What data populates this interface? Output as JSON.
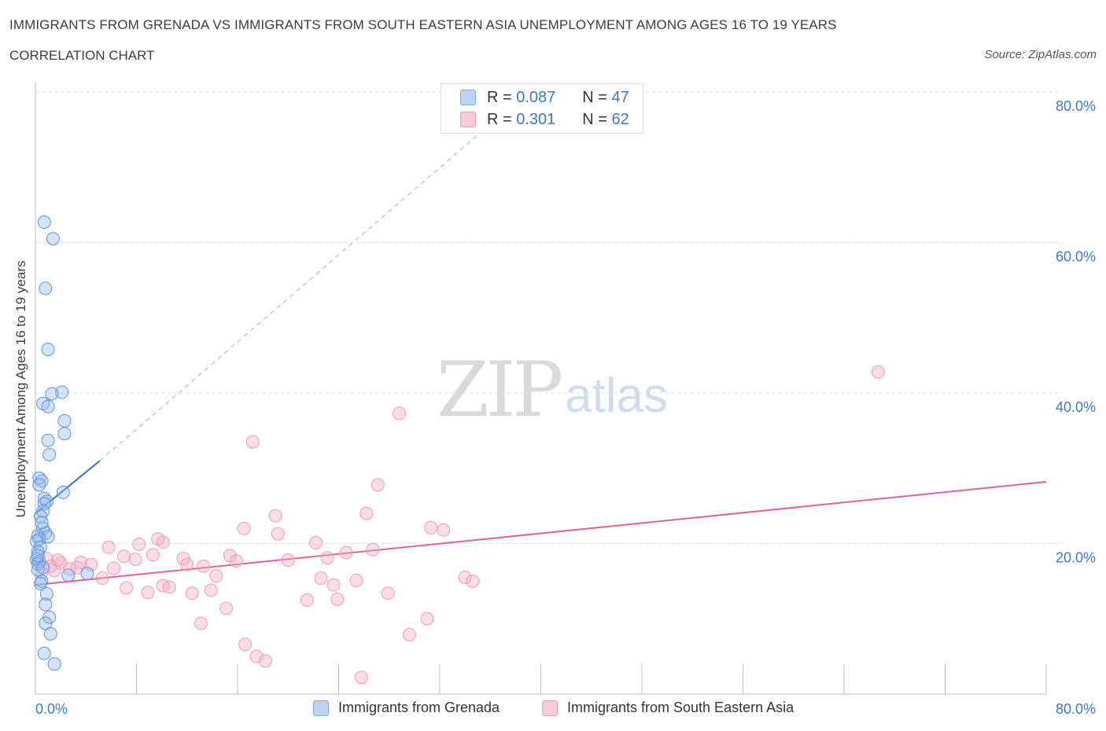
{
  "title": "IMMIGRANTS FROM GRENADA VS IMMIGRANTS FROM SOUTH EASTERN ASIA UNEMPLOYMENT AMONG AGES 16 TO 19 YEARS",
  "subtitle": "CORRELATION CHART",
  "source": "Source: ZipAtlas.com",
  "watermark": {
    "zip": "ZIP",
    "atlas": "atlas"
  },
  "colors": {
    "blue": "#5b93dc",
    "pink": "#e86d97",
    "blue_line": "#2f73d0",
    "pink_line": "#e0609a",
    "axis_text": "#3b78c7",
    "grid": "#dddddd"
  },
  "legend": {
    "series1": {
      "r_label": "R =",
      "r_value": "0.087",
      "n_label": "N =",
      "n_value": "47"
    },
    "series2": {
      "r_label": "R =",
      "r_value": "0.301",
      "n_label": "N =",
      "n_value": "62"
    }
  },
  "chart_data": {
    "type": "scatter",
    "xlabel": "",
    "ylabel": "Unemployment Among Ages 16 to 19 years",
    "xlim": [
      0,
      80
    ],
    "ylim": [
      0,
      80
    ],
    "x_tick_labels": [
      "0.0%",
      "80.0%"
    ],
    "y_ticks": [
      20,
      40,
      60,
      80
    ],
    "y_tick_labels": [
      "20.0%",
      "40.0%",
      "60.0%",
      "80.0%"
    ],
    "grid": true,
    "series": [
      {
        "name": "Immigrants from Grenada",
        "color": "#5b93dc",
        "trend": {
          "x": [
            0,
            5.1
          ],
          "y": [
            24.0,
            31.0
          ],
          "dashed_extension": {
            "x": [
              5.1,
              35.5
            ],
            "y": [
              31.0,
              75.0
            ]
          }
        },
        "points": [
          {
            "x": 0.7,
            "y": 62.7
          },
          {
            "x": 1.4,
            "y": 60.5
          },
          {
            "x": 0.8,
            "y": 53.9
          },
          {
            "x": 1.0,
            "y": 45.8
          },
          {
            "x": 2.1,
            "y": 40.1
          },
          {
            "x": 1.3,
            "y": 39.9
          },
          {
            "x": 0.6,
            "y": 38.6
          },
          {
            "x": 1.0,
            "y": 38.2
          },
          {
            "x": 2.3,
            "y": 36.3
          },
          {
            "x": 2.3,
            "y": 34.6
          },
          {
            "x": 1.0,
            "y": 33.7
          },
          {
            "x": 1.1,
            "y": 31.8
          },
          {
            "x": 0.3,
            "y": 28.7
          },
          {
            "x": 0.5,
            "y": 28.3
          },
          {
            "x": 0.3,
            "y": 27.8
          },
          {
            "x": 2.2,
            "y": 26.8
          },
          {
            "x": 0.7,
            "y": 26.0
          },
          {
            "x": 0.9,
            "y": 25.6
          },
          {
            "x": 0.7,
            "y": 25.3
          },
          {
            "x": 0.6,
            "y": 24.3
          },
          {
            "x": 0.4,
            "y": 23.6
          },
          {
            "x": 0.6,
            "y": 22.0
          },
          {
            "x": 0.8,
            "y": 21.4
          },
          {
            "x": 0.2,
            "y": 21.0
          },
          {
            "x": 1.0,
            "y": 20.9
          },
          {
            "x": 0.3,
            "y": 20.6
          },
          {
            "x": 0.1,
            "y": 20.3
          },
          {
            "x": 0.4,
            "y": 19.5
          },
          {
            "x": 0.2,
            "y": 18.9
          },
          {
            "x": 0.1,
            "y": 17.9
          },
          {
            "x": 0.3,
            "y": 17.6
          },
          {
            "x": 0.2,
            "y": 17.3
          },
          {
            "x": 4.1,
            "y": 16.0
          },
          {
            "x": 2.6,
            "y": 15.8
          },
          {
            "x": 0.5,
            "y": 15.0
          },
          {
            "x": 0.4,
            "y": 14.7
          },
          {
            "x": 0.9,
            "y": 13.3
          },
          {
            "x": 0.8,
            "y": 11.9
          },
          {
            "x": 1.1,
            "y": 10.2
          },
          {
            "x": 0.8,
            "y": 9.4
          },
          {
            "x": 1.2,
            "y": 8.0
          },
          {
            "x": 0.7,
            "y": 5.4
          },
          {
            "x": 1.5,
            "y": 4.0
          },
          {
            "x": 0.2,
            "y": 16.5
          },
          {
            "x": 0.5,
            "y": 22.8
          },
          {
            "x": 0.2,
            "y": 18.4
          },
          {
            "x": 0.6,
            "y": 16.8
          }
        ]
      },
      {
        "name": "Immigrants from South Eastern Asia",
        "color": "#e86d97",
        "trend": {
          "x": [
            0,
            80
          ],
          "y": [
            14.5,
            28.2
          ]
        },
        "points": [
          {
            "x": 66.7,
            "y": 42.8
          },
          {
            "x": 28.8,
            "y": 37.3
          },
          {
            "x": 17.2,
            "y": 33.5
          },
          {
            "x": 27.1,
            "y": 27.8
          },
          {
            "x": 19.0,
            "y": 23.7
          },
          {
            "x": 26.2,
            "y": 24.0
          },
          {
            "x": 31.3,
            "y": 22.1
          },
          {
            "x": 32.3,
            "y": 21.8
          },
          {
            "x": 16.5,
            "y": 22.0
          },
          {
            "x": 19.2,
            "y": 21.3
          },
          {
            "x": 9.7,
            "y": 20.6
          },
          {
            "x": 10.1,
            "y": 20.2
          },
          {
            "x": 8.2,
            "y": 19.9
          },
          {
            "x": 22.2,
            "y": 20.1
          },
          {
            "x": 5.8,
            "y": 19.5
          },
          {
            "x": 26.7,
            "y": 19.2
          },
          {
            "x": 24.6,
            "y": 18.8
          },
          {
            "x": 9.3,
            "y": 18.5
          },
          {
            "x": 15.4,
            "y": 18.4
          },
          {
            "x": 7.0,
            "y": 18.3
          },
          {
            "x": 11.7,
            "y": 18.0
          },
          {
            "x": 15.9,
            "y": 17.7
          },
          {
            "x": 20.0,
            "y": 17.8
          },
          {
            "x": 23.1,
            "y": 18.1
          },
          {
            "x": 7.9,
            "y": 17.9
          },
          {
            "x": 3.6,
            "y": 17.5
          },
          {
            "x": 2.0,
            "y": 17.4
          },
          {
            "x": 4.4,
            "y": 17.2
          },
          {
            "x": 12.0,
            "y": 17.2
          },
          {
            "x": 13.3,
            "y": 17.0
          },
          {
            "x": 3.3,
            "y": 16.8
          },
          {
            "x": 6.2,
            "y": 16.7
          },
          {
            "x": 2.7,
            "y": 16.6
          },
          {
            "x": 1.5,
            "y": 16.4
          },
          {
            "x": 14.3,
            "y": 15.7
          },
          {
            "x": 22.6,
            "y": 15.4
          },
          {
            "x": 5.3,
            "y": 15.4
          },
          {
            "x": 34.0,
            "y": 15.5
          },
          {
            "x": 34.6,
            "y": 15.0
          },
          {
            "x": 25.4,
            "y": 15.1
          },
          {
            "x": 23.6,
            "y": 14.5
          },
          {
            "x": 10.1,
            "y": 14.4
          },
          {
            "x": 10.6,
            "y": 14.2
          },
          {
            "x": 7.2,
            "y": 14.1
          },
          {
            "x": 13.9,
            "y": 13.8
          },
          {
            "x": 8.9,
            "y": 13.5
          },
          {
            "x": 12.4,
            "y": 13.4
          },
          {
            "x": 27.9,
            "y": 13.4
          },
          {
            "x": 21.5,
            "y": 12.5
          },
          {
            "x": 23.9,
            "y": 12.6
          },
          {
            "x": 15.1,
            "y": 11.4
          },
          {
            "x": 31.0,
            "y": 10.0
          },
          {
            "x": 13.1,
            "y": 9.4
          },
          {
            "x": 29.6,
            "y": 7.9
          },
          {
            "x": 16.6,
            "y": 6.6
          },
          {
            "x": 17.5,
            "y": 5.0
          },
          {
            "x": 18.2,
            "y": 4.4
          },
          {
            "x": 25.8,
            "y": 2.2
          },
          {
            "x": 1.2,
            "y": 17.0
          },
          {
            "x": 0.9,
            "y": 18.0
          },
          {
            "x": 1.8,
            "y": 17.8
          },
          {
            "x": 0.5,
            "y": 16.2
          }
        ]
      }
    ]
  },
  "bottom_legend": {
    "item1": "Immigrants from Grenada",
    "item2": "Immigrants from South Eastern Asia"
  }
}
